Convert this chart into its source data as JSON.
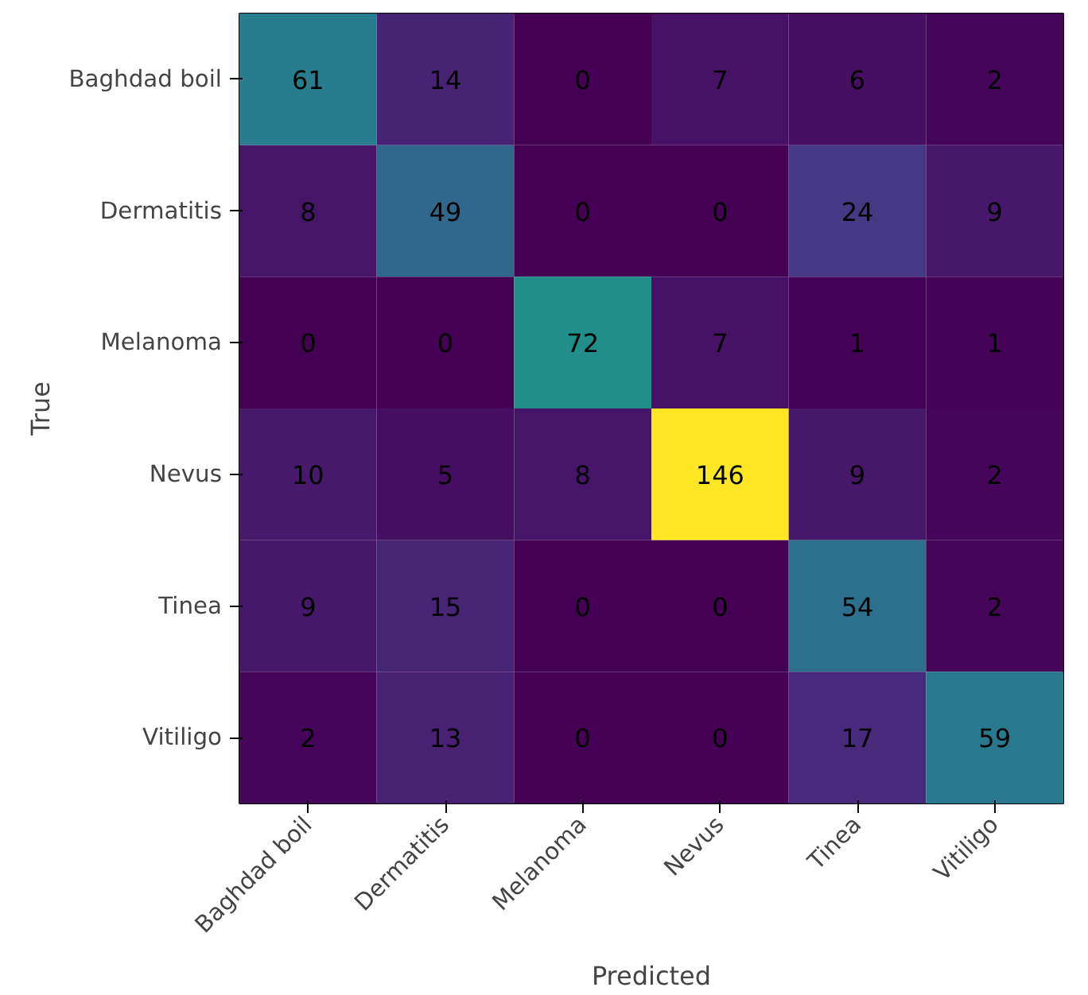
{
  "chart_data": {
    "type": "heatmap",
    "xlabel": "Predicted",
    "ylabel": "True",
    "categories": [
      "Baghdad boil",
      "Dermatitis",
      "Melanoma",
      "Nevus",
      "Tinea",
      "Vitiligo"
    ],
    "y_categories": [
      "Baghdad boil",
      "Dermatitis",
      "Melanoma",
      "Nevus",
      "Tinea",
      "Vitiligo"
    ],
    "cells": [
      [
        61,
        14,
        0,
        7,
        6,
        2
      ],
      [
        8,
        49,
        0,
        0,
        24,
        9
      ],
      [
        0,
        0,
        72,
        7,
        1,
        1
      ],
      [
        10,
        5,
        8,
        146,
        9,
        2
      ],
      [
        9,
        15,
        0,
        0,
        54,
        2
      ],
      [
        2,
        13,
        0,
        0,
        17,
        59
      ]
    ],
    "data_labels": true
  }
}
